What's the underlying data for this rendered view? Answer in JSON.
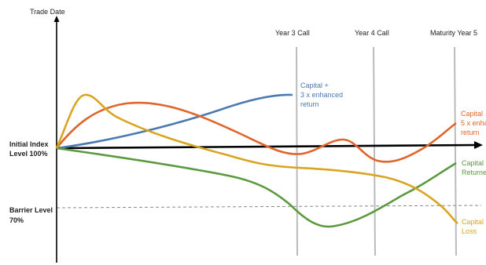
{
  "axes": {
    "y_axis_label": "Trade Date",
    "initial_level_label": [
      "Initial Index",
      "Level 100%"
    ],
    "barrier_label": [
      "Barrier Level",
      "70%"
    ]
  },
  "milestones": [
    {
      "label": "Year 3 Call"
    },
    {
      "label": "Year 4 Call"
    },
    {
      "label": "Maturity Year 5"
    }
  ],
  "curves": [
    {
      "name": "blue",
      "color": "#4a7ab0",
      "label_lines": [
        "Capital +",
        "3 x enhanced",
        "return"
      ]
    },
    {
      "name": "orange",
      "color": "#e0652a",
      "label_lines": [
        "Capital",
        "5 x enha",
        "return"
      ]
    },
    {
      "name": "green",
      "color": "#5a9a3c",
      "label_lines": [
        "Capital",
        "Returne"
      ]
    },
    {
      "name": "gold",
      "color": "#d9a420",
      "label_lines": [
        "Capital",
        "Loss"
      ]
    }
  ],
  "colors": {
    "axis": "#000000",
    "milestone_line": "#bbbbbb",
    "barrier_line": "#888888"
  }
}
